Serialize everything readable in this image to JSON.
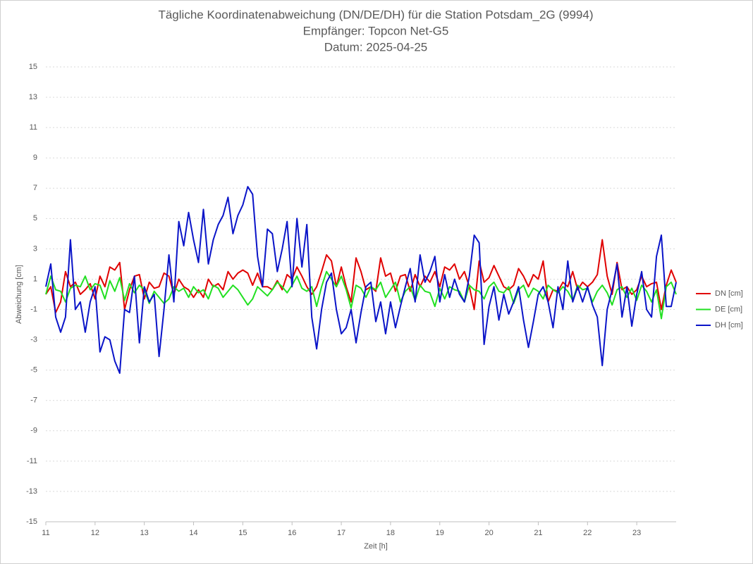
{
  "chart_data": {
    "type": "line",
    "title": [
      "Tägliche Koordinatenabweichung (DN/DE/DH) für die Station Potsdam_2G (9994)",
      "Empfänger: Topcon Net-G5",
      "Datum: 2025-04-25"
    ],
    "xlabel": "Zeit [h]",
    "ylabel": "Abweichung [cm]",
    "xlim": [
      11,
      23.8
    ],
    "xticks": [
      11,
      12,
      13,
      14,
      15,
      16,
      17,
      18,
      19,
      20,
      21,
      22,
      23
    ],
    "ylim": [
      -15,
      15
    ],
    "yticks": [
      -15,
      -13,
      -11,
      -9,
      -7,
      -5,
      -3,
      -1,
      1,
      3,
      5,
      7,
      9,
      11,
      13,
      15
    ],
    "grid": true,
    "legend": "right",
    "x": [
      11.0,
      11.1,
      11.2,
      11.3,
      11.4,
      11.5,
      11.6,
      11.7,
      11.8,
      11.9,
      12.0,
      12.1,
      12.2,
      12.3,
      12.4,
      12.5,
      12.6,
      12.7,
      12.8,
      12.9,
      13.0,
      13.1,
      13.2,
      13.3,
      13.4,
      13.5,
      13.6,
      13.7,
      13.8,
      13.9,
      14.0,
      14.1,
      14.2,
      14.3,
      14.4,
      14.5,
      14.6,
      14.7,
      14.8,
      14.9,
      15.0,
      15.1,
      15.2,
      15.3,
      15.4,
      15.5,
      15.6,
      15.7,
      15.8,
      15.9,
      16.0,
      16.1,
      16.2,
      16.3,
      16.4,
      16.5,
      16.6,
      16.7,
      16.8,
      16.9,
      17.0,
      17.1,
      17.2,
      17.3,
      17.4,
      17.5,
      17.6,
      17.7,
      17.8,
      17.9,
      18.0,
      18.1,
      18.2,
      18.3,
      18.4,
      18.5,
      18.6,
      18.7,
      18.8,
      18.9,
      19.0,
      19.1,
      19.2,
      19.3,
      19.4,
      19.5,
      19.6,
      19.7,
      19.8,
      19.9,
      20.0,
      20.1,
      20.2,
      20.3,
      20.4,
      20.5,
      20.6,
      20.7,
      20.8,
      20.9,
      21.0,
      21.1,
      21.2,
      21.3,
      21.4,
      21.5,
      21.6,
      21.7,
      21.8,
      21.9,
      22.0,
      22.1,
      22.2,
      22.3,
      22.4,
      22.5,
      22.6,
      22.7,
      22.8,
      22.9,
      23.0,
      23.1,
      23.2,
      23.3,
      23.4,
      23.5,
      23.6,
      23.7,
      23.8
    ],
    "series": [
      {
        "name": "DN [cm]",
        "color": "#e00000",
        "values": [
          0,
          0.5,
          -1.2,
          -0.5,
          1.5,
          0.5,
          0.8,
          0,
          0.3,
          0.7,
          -0.3,
          1.2,
          0.5,
          1.8,
          1.6,
          2.1,
          -1,
          0.3,
          1.2,
          1.3,
          -0.3,
          0.8,
          0.4,
          0.5,
          1.4,
          1.2,
          0,
          1,
          0.5,
          0.3,
          -0.2,
          0.3,
          -0.2,
          1,
          0.5,
          0.7,
          0.3,
          1.5,
          1,
          1.4,
          1.6,
          1.4,
          0.6,
          1.4,
          0.5,
          0.5,
          0.3,
          0.9,
          0.3,
          1.3,
          1,
          1.8,
          1.2,
          0.5,
          0,
          0.5,
          1.5,
          2.6,
          2.2,
          0.5,
          1.8,
          0.5,
          -0.5,
          2.4,
          1.5,
          0.3,
          0.5,
          0.2,
          2.4,
          1.2,
          1.4,
          0.2,
          1.2,
          1.3,
          0.2,
          1.3,
          0.5,
          1.2,
          0.8,
          1.5,
          0.5,
          1.8,
          1.6,
          2,
          1,
          1.5,
          0.5,
          -1,
          2.2,
          0.8,
          1.1,
          1.9,
          1.2,
          0.5,
          0.3,
          0.6,
          1.7,
          1.2,
          0.5,
          1.3,
          1,
          2.2,
          -0.5,
          0.3,
          0.2,
          0.8,
          0.5,
          1.5,
          0.3,
          0.8,
          0.5,
          0.8,
          1.3,
          3.6,
          1.2,
          0,
          2.1,
          0.3,
          0.5,
          0,
          0.3,
          1.2,
          0.5,
          0.7,
          0.8,
          -1,
          0.6,
          1.6,
          0.8
        ]
      },
      {
        "name": "DE [cm]",
        "color": "#22e022",
        "values": [
          0,
          1.2,
          0.3,
          0.2,
          -0.5,
          0.4,
          0.6,
          0.5,
          1.2,
          0.3,
          0.7,
          0.6,
          -0.3,
          0.9,
          0.2,
          1.1,
          -0.4,
          0.7,
          0.1,
          0.6,
          0.3,
          -0.6,
          0.2,
          -0.2,
          -0.6,
          -0.3,
          0.5,
          0.2,
          0.4,
          -0.2,
          0.5,
          0.1,
          0.3,
          -0.3,
          0.6,
          0.4,
          -0.2,
          0.2,
          0.6,
          0.3,
          -0.2,
          -0.7,
          -0.3,
          0.5,
          0.2,
          -0.1,
          0.3,
          0.8,
          0.5,
          0.1,
          0.6,
          1.2,
          0.4,
          0.2,
          0.5,
          -0.8,
          0.5,
          1.5,
          1,
          0.5,
          1.2,
          0.3,
          -0.9,
          0.6,
          0.4,
          -0.2,
          0.5,
          0.3,
          0.8,
          -0.2,
          0.3,
          0.8,
          -0.5,
          0.2,
          0.5,
          -0.4,
          0.6,
          0.2,
          0.1,
          -0.8,
          0.4,
          -0.3,
          0.5,
          0.3,
          0.2,
          -0.5,
          0.6,
          0.3,
          0.2,
          -0.3,
          0.5,
          0.8,
          0.2,
          0.1,
          0.5,
          -0.6,
          0.3,
          0.6,
          -0.2,
          0.4,
          0.2,
          -0.3,
          0.6,
          0.3,
          0.1,
          0.5,
          0.2,
          -0.4,
          0.6,
          0.3,
          0.4,
          -0.5,
          0.2,
          0.6,
          0.1,
          -0.7,
          0.3,
          0.5,
          -0.2,
          0.4,
          -0.4,
          0.6,
          0.2,
          -0.5,
          0.3,
          -1.6,
          0.5,
          0.8,
          0
        ]
      },
      {
        "name": "DH [cm]",
        "color": "#0a14c8",
        "values": [
          0.5,
          2,
          -1.5,
          -2.5,
          -1.5,
          3.6,
          -1,
          -0.5,
          -2.5,
          -0.5,
          0.5,
          -3.8,
          -2.8,
          -3,
          -4.4,
          -5.2,
          -1,
          -1.2,
          1.2,
          -3.2,
          0.5,
          -0.5,
          0,
          -4.1,
          -1,
          2.6,
          -0.5,
          4.8,
          3.2,
          5.4,
          3.6,
          2.1,
          5.6,
          2,
          3.6,
          4.6,
          5.2,
          6.4,
          4,
          5.2,
          5.9,
          7.1,
          6.6,
          2.5,
          0.5,
          4.3,
          4,
          1.5,
          3,
          4.8,
          0.5,
          5,
          1.8,
          4.6,
          -1.5,
          -3.6,
          -1,
          0.8,
          1.4,
          -1,
          -2.6,
          -2.2,
          -1,
          -3.2,
          -1.2,
          0.5,
          0.8,
          -1.8,
          -0.5,
          -2.6,
          -0.5,
          -2.2,
          -0.8,
          0.5,
          1.7,
          -0.5,
          2.6,
          0.8,
          1.5,
          2.5,
          -0.5,
          1.3,
          -0.2,
          1,
          0,
          -0.5,
          1.2,
          3.9,
          3.4,
          -3.3,
          -0.8,
          0.5,
          -1.7,
          0,
          -1.3,
          -0.5,
          0.5,
          -1.7,
          -3.5,
          -1.8,
          0,
          0.5,
          -0.5,
          -2.2,
          0.5,
          -1,
          2.2,
          -0.5,
          0.5,
          -0.5,
          0.5,
          -0.7,
          -1.5,
          -4.7,
          -1,
          0.3,
          2,
          -1.5,
          0.5,
          -2.1,
          0,
          1.5,
          -1,
          -1.5,
          2.5,
          3.9,
          -0.8,
          -0.8,
          0.8
        ]
      }
    ]
  }
}
